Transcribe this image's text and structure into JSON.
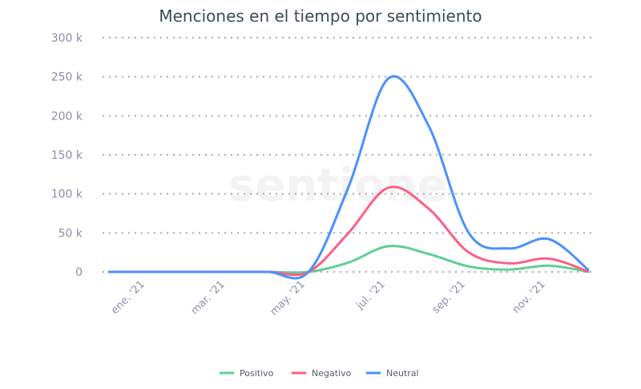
{
  "chart_data": {
    "type": "line",
    "title": "Menciones en el tiempo por sentimiento",
    "watermark": "sentione",
    "x": [
      "dic. '20",
      "ene. '21",
      "feb. '21",
      "mar. '21",
      "abr. '21",
      "may. '21",
      "jun. '21",
      "jul. '21",
      "ago. '21",
      "sep. '21",
      "oct. '21",
      "nov. '21",
      "dic. '21"
    ],
    "xtick_labels": [
      "ene. '21",
      "mar. '21",
      "may. '21",
      "jul. '21",
      "sep. '21",
      "nov. '21"
    ],
    "ylim": [
      0,
      300000
    ],
    "ytick_labels": [
      "0",
      "50 k",
      "100 k",
      "150 k",
      "200 k",
      "250 k",
      "300 k"
    ],
    "yticks": [
      0,
      50000,
      100000,
      150000,
      200000,
      250000,
      300000
    ],
    "grid": true,
    "legend_position": "bottom",
    "series": [
      {
        "name": "Positivo",
        "color": "#5fcf94",
        "values": [
          0,
          0,
          0,
          0,
          0,
          0,
          12000,
          33000,
          23000,
          7000,
          3000,
          8000,
          0
        ]
      },
      {
        "name": "Negativo",
        "color": "#ff5f85",
        "values": [
          0,
          0,
          0,
          0,
          0,
          0,
          50000,
          108000,
          81000,
          25000,
          11000,
          17000,
          0
        ]
      },
      {
        "name": "Neutral",
        "color": "#4a90ff",
        "values": [
          0,
          0,
          0,
          0,
          0,
          0,
          109000,
          248000,
          187000,
          50000,
          30000,
          42000,
          2000
        ]
      }
    ]
  }
}
